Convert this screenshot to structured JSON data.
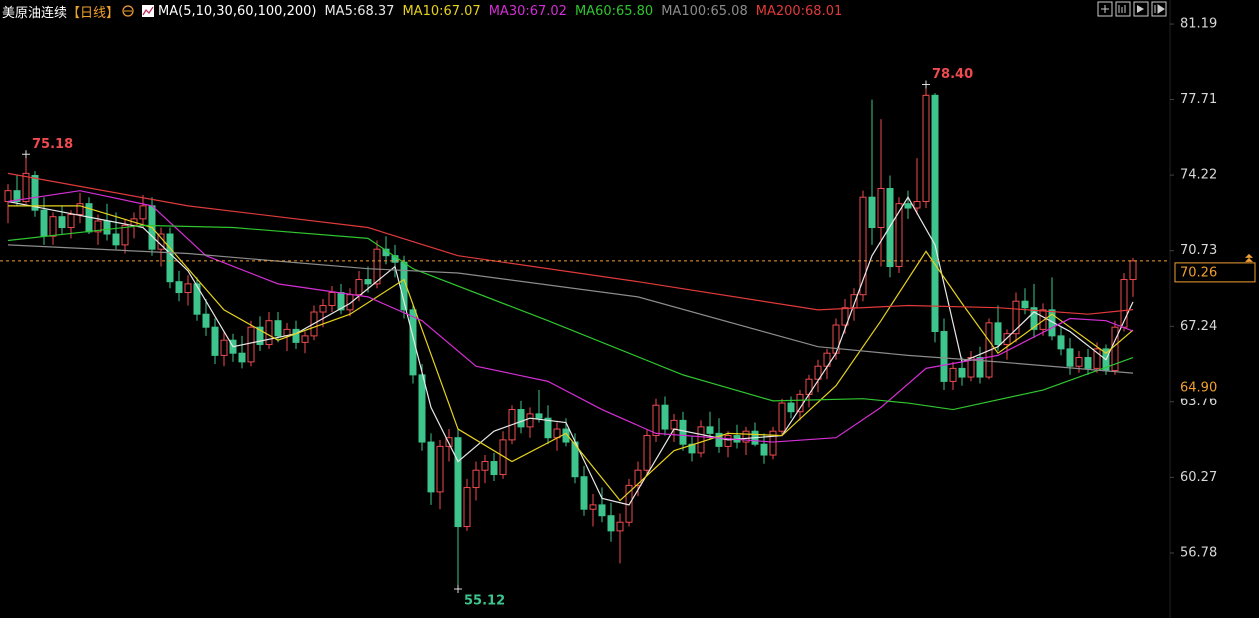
{
  "chart_data": {
    "type": "candlestick",
    "title": "美原油连续",
    "period": "【日线】",
    "indicator": "MA(5,10,30,60,100,200)",
    "up_color": "#ee4b4f",
    "down_color": "#3ec58d",
    "ylim": [
      53.78,
      82.3
    ],
    "yticks": [
      81.19,
      77.71,
      74.22,
      70.73,
      67.24,
      63.76,
      60.27,
      56.78
    ],
    "last_price": 70.26,
    "last_color": "#f0a030",
    "cursor_price": {
      "value": 64.9,
      "label": "64.90"
    },
    "annotations": [
      {
        "index": 2,
        "value": 75.18,
        "label": "75.18",
        "kind": "high"
      },
      {
        "index": 102,
        "value": 78.4,
        "label": "78.40",
        "kind": "high"
      },
      {
        "index": 50,
        "value": 55.12,
        "label": "55.12",
        "kind": "low"
      }
    ],
    "candles": [
      [
        73.0,
        73.8,
        72.0,
        73.5
      ],
      [
        73.5,
        74.2,
        72.8,
        73.0
      ],
      [
        73.0,
        75.18,
        72.9,
        74.3
      ],
      [
        74.2,
        74.4,
        72.3,
        72.6
      ],
      [
        72.6,
        73.2,
        71.0,
        71.4
      ],
      [
        71.4,
        72.5,
        71.0,
        72.3
      ],
      [
        72.3,
        72.8,
        71.5,
        71.8
      ],
      [
        71.8,
        72.6,
        71.3,
        72.4
      ],
      [
        72.4,
        73.4,
        72.0,
        72.9
      ],
      [
        72.9,
        73.2,
        71.5,
        71.6
      ],
      [
        71.6,
        72.4,
        71.0,
        72.1
      ],
      [
        72.1,
        72.9,
        71.2,
        71.5
      ],
      [
        71.5,
        72.5,
        70.8,
        71.0
      ],
      [
        71.0,
        72.2,
        70.6,
        71.9
      ],
      [
        71.9,
        72.5,
        71.3,
        72.2
      ],
      [
        72.2,
        73.3,
        71.8,
        72.8
      ],
      [
        72.8,
        73.2,
        70.5,
        70.8
      ],
      [
        70.8,
        71.8,
        70.0,
        71.5
      ],
      [
        71.5,
        71.8,
        69.0,
        69.3
      ],
      [
        69.3,
        69.8,
        68.4,
        68.8
      ],
      [
        68.8,
        69.6,
        68.2,
        69.2
      ],
      [
        69.2,
        69.5,
        67.5,
        67.8
      ],
      [
        67.8,
        68.5,
        66.8,
        67.2
      ],
      [
        67.2,
        67.6,
        65.5,
        65.9
      ],
      [
        65.9,
        67.0,
        65.4,
        66.6
      ],
      [
        66.6,
        66.9,
        65.6,
        66.0
      ],
      [
        66.0,
        66.8,
        65.3,
        65.6
      ],
      [
        65.6,
        67.5,
        65.4,
        67.2
      ],
      [
        67.2,
        67.7,
        66.1,
        66.4
      ],
      [
        66.4,
        67.9,
        66.2,
        67.5
      ],
      [
        67.5,
        67.9,
        66.5,
        66.8
      ],
      [
        66.8,
        67.4,
        66.1,
        67.1
      ],
      [
        67.1,
        67.5,
        66.2,
        66.5
      ],
      [
        66.5,
        67.0,
        66.0,
        66.8
      ],
      [
        66.8,
        68.2,
        66.6,
        67.9
      ],
      [
        67.9,
        68.5,
        67.2,
        68.2
      ],
      [
        68.2,
        69.1,
        67.9,
        68.8
      ],
      [
        68.8,
        69.2,
        67.8,
        68.0
      ],
      [
        68.0,
        69.0,
        67.7,
        68.7
      ],
      [
        68.7,
        69.8,
        68.4,
        69.4
      ],
      [
        69.4,
        70.0,
        68.8,
        69.2
      ],
      [
        69.2,
        71.2,
        69.0,
        70.8
      ],
      [
        70.8,
        71.4,
        70.1,
        70.5
      ],
      [
        70.5,
        71.0,
        69.5,
        70.2
      ],
      [
        70.2,
        70.5,
        67.6,
        68.0
      ],
      [
        68.0,
        68.3,
        64.6,
        65.0
      ],
      [
        65.0,
        65.5,
        61.5,
        61.9
      ],
      [
        61.9,
        62.3,
        59.0,
        59.6
      ],
      [
        59.6,
        62.0,
        58.8,
        61.7
      ],
      [
        61.7,
        62.5,
        61.0,
        62.1
      ],
      [
        62.1,
        62.5,
        55.12,
        58.0
      ],
      [
        58.0,
        60.2,
        57.8,
        59.8
      ],
      [
        59.8,
        61.0,
        59.2,
        60.6
      ],
      [
        60.6,
        61.3,
        60.0,
        61.0
      ],
      [
        61.0,
        61.4,
        60.1,
        60.4
      ],
      [
        60.4,
        62.4,
        60.2,
        62.0
      ],
      [
        62.0,
        63.6,
        61.8,
        63.4
      ],
      [
        63.4,
        63.8,
        62.3,
        62.6
      ],
      [
        62.6,
        63.5,
        62.1,
        63.2
      ],
      [
        63.2,
        64.3,
        62.8,
        63.0
      ],
      [
        63.0,
        63.6,
        61.8,
        62.1
      ],
      [
        62.1,
        62.8,
        61.5,
        62.5
      ],
      [
        62.5,
        63.0,
        61.7,
        61.9
      ],
      [
        61.9,
        62.3,
        60.0,
        60.3
      ],
      [
        60.3,
        60.8,
        58.5,
        58.8
      ],
      [
        58.8,
        59.5,
        58.0,
        59.0
      ],
      [
        59.0,
        59.8,
        58.2,
        58.5
      ],
      [
        58.5,
        59.1,
        57.3,
        57.8
      ],
      [
        57.8,
        58.6,
        56.3,
        58.2
      ],
      [
        58.2,
        60.2,
        58.0,
        59.9
      ],
      [
        59.9,
        61.0,
        59.4,
        60.6
      ],
      [
        60.6,
        62.5,
        60.4,
        62.2
      ],
      [
        62.2,
        63.9,
        61.9,
        63.6
      ],
      [
        63.6,
        64.0,
        62.2,
        62.5
      ],
      [
        62.5,
        63.2,
        61.9,
        62.9
      ],
      [
        62.9,
        63.3,
        61.5,
        61.8
      ],
      [
        61.8,
        62.2,
        61.0,
        61.4
      ],
      [
        61.4,
        62.9,
        61.2,
        62.6
      ],
      [
        62.6,
        63.3,
        62.0,
        62.3
      ],
      [
        62.3,
        63.0,
        61.4,
        61.7
      ],
      [
        61.7,
        62.4,
        61.2,
        62.2
      ],
      [
        62.2,
        62.7,
        61.6,
        61.9
      ],
      [
        61.9,
        62.6,
        61.3,
        62.4
      ],
      [
        62.4,
        62.8,
        61.7,
        61.8
      ],
      [
        61.8,
        62.3,
        60.9,
        61.3
      ],
      [
        61.3,
        62.6,
        61.1,
        62.4
      ],
      [
        62.4,
        63.9,
        62.2,
        63.7
      ],
      [
        63.7,
        64.0,
        63.0,
        63.3
      ],
      [
        63.3,
        64.3,
        62.9,
        64.1
      ],
      [
        64.1,
        65.0,
        63.5,
        64.8
      ],
      [
        64.8,
        65.7,
        64.2,
        65.4
      ],
      [
        65.4,
        66.2,
        64.8,
        66.0
      ],
      [
        66.0,
        67.6,
        65.7,
        67.3
      ],
      [
        67.3,
        68.5,
        66.9,
        68.1
      ],
      [
        68.1,
        69.0,
        67.5,
        68.7
      ],
      [
        68.7,
        73.5,
        68.4,
        73.2
      ],
      [
        73.2,
        77.7,
        71.0,
        71.8
      ],
      [
        71.8,
        76.8,
        70.0,
        73.6
      ],
      [
        73.6,
        74.2,
        69.5,
        70.0
      ],
      [
        70.0,
        73.2,
        69.7,
        72.9
      ],
      [
        72.9,
        73.5,
        72.2,
        72.7
      ],
      [
        72.7,
        75.0,
        72.4,
        73.0
      ],
      [
        73.0,
        78.4,
        72.7,
        77.9
      ],
      [
        77.9,
        78.0,
        66.5,
        67.0
      ],
      [
        67.0,
        67.6,
        64.3,
        64.7
      ],
      [
        64.7,
        65.6,
        64.3,
        65.3
      ],
      [
        65.3,
        65.8,
        64.5,
        64.9
      ],
      [
        64.9,
        66.1,
        64.7,
        65.8
      ],
      [
        65.8,
        66.3,
        64.6,
        64.9
      ],
      [
        64.9,
        67.6,
        64.8,
        67.4
      ],
      [
        67.4,
        68.2,
        66.1,
        66.4
      ],
      [
        66.4,
        67.1,
        65.7,
        66.9
      ],
      [
        66.9,
        68.8,
        66.5,
        68.4
      ],
      [
        68.4,
        69.0,
        67.8,
        68.1
      ],
      [
        68.1,
        69.2,
        66.7,
        67.1
      ],
      [
        67.1,
        68.3,
        66.8,
        68.0
      ],
      [
        68.0,
        69.5,
        66.6,
        66.8
      ],
      [
        66.8,
        67.2,
        65.9,
        66.2
      ],
      [
        66.2,
        66.7,
        65.0,
        65.4
      ],
      [
        65.4,
        66.1,
        65.1,
        65.8
      ],
      [
        65.8,
        66.2,
        65.0,
        65.3
      ],
      [
        65.3,
        66.5,
        65.1,
        66.2
      ],
      [
        66.2,
        66.4,
        65.0,
        65.2
      ],
      [
        65.2,
        67.5,
        65.0,
        67.2
      ],
      [
        67.2,
        69.7,
        67.0,
        69.4
      ],
      [
        69.4,
        70.4,
        68.6,
        70.26
      ]
    ],
    "series": [
      {
        "name": "MA5",
        "legend": "MA5:68.37",
        "color": "#e8e8e8",
        "x": [
          0,
          5,
          10,
          15,
          20,
          25,
          32,
          38,
          43,
          47,
          50,
          54,
          58,
          62,
          66,
          69,
          74,
          80,
          86,
          92,
          96,
          100,
          103,
          106,
          110,
          114,
          118,
          122,
          125
        ],
        "values": [
          73.0,
          72.6,
          72.2,
          71.8,
          69.8,
          66.3,
          66.9,
          68.3,
          70.0,
          63.5,
          61.0,
          62.4,
          63.0,
          62.8,
          59.3,
          59.0,
          62.5,
          62.0,
          62.2,
          66.0,
          70.5,
          73.2,
          71.0,
          65.6,
          66.3,
          67.9,
          67.0,
          65.7,
          68.37
        ]
      },
      {
        "name": "MA10",
        "legend": "MA10:67.07",
        "color": "#e6d21e",
        "x": [
          0,
          8,
          16,
          24,
          30,
          38,
          44,
          50,
          56,
          62,
          68,
          74,
          80,
          86,
          92,
          97,
          102,
          106,
          110,
          116,
          122,
          125
        ],
        "values": [
          72.8,
          72.8,
          71.8,
          68.0,
          66.6,
          67.8,
          69.4,
          62.5,
          61.0,
          62.3,
          59.2,
          61.5,
          62.3,
          62.2,
          64.5,
          67.5,
          70.7,
          68.3,
          66.0,
          67.8,
          66.0,
          67.07
        ]
      },
      {
        "name": "MA30",
        "legend": "MA30:67.02",
        "color": "#d42fd4",
        "x": [
          0,
          8,
          16,
          22,
          30,
          40,
          46,
          52,
          60,
          66,
          72,
          85,
          92,
          97,
          102,
          110,
          118,
          122,
          125
        ],
        "values": [
          73.0,
          73.5,
          72.8,
          70.5,
          69.2,
          68.6,
          67.5,
          65.4,
          64.7,
          63.4,
          62.3,
          61.9,
          62.1,
          63.5,
          65.3,
          65.9,
          67.6,
          67.5,
          67.02
        ]
      },
      {
        "name": "MA60",
        "legend": "MA60:65.80",
        "color": "#2fc62f",
        "x": [
          0,
          15,
          25,
          40,
          45,
          60,
          75,
          85,
          95,
          100,
          105,
          115,
          125
        ],
        "values": [
          71.2,
          71.9,
          71.8,
          71.3,
          69.9,
          67.5,
          65.0,
          63.8,
          63.9,
          63.7,
          63.4,
          64.3,
          65.8
        ]
      },
      {
        "name": "MA100",
        "legend": "MA100:65.08",
        "color": "#8c8c8c",
        "x": [
          0,
          20,
          40,
          50,
          70,
          90,
          100,
          110,
          125
        ],
        "values": [
          71.0,
          70.6,
          69.9,
          69.7,
          68.6,
          66.3,
          65.9,
          65.6,
          65.08
        ]
      },
      {
        "name": "MA200",
        "legend": "MA200:68.01",
        "color": "#e03a3a",
        "x": [
          0,
          20,
          40,
          50,
          70,
          90,
          100,
          110,
          120,
          125
        ],
        "values": [
          74.3,
          72.8,
          71.8,
          70.5,
          69.3,
          68.0,
          68.2,
          68.1,
          67.8,
          68.01
        ]
      }
    ]
  }
}
